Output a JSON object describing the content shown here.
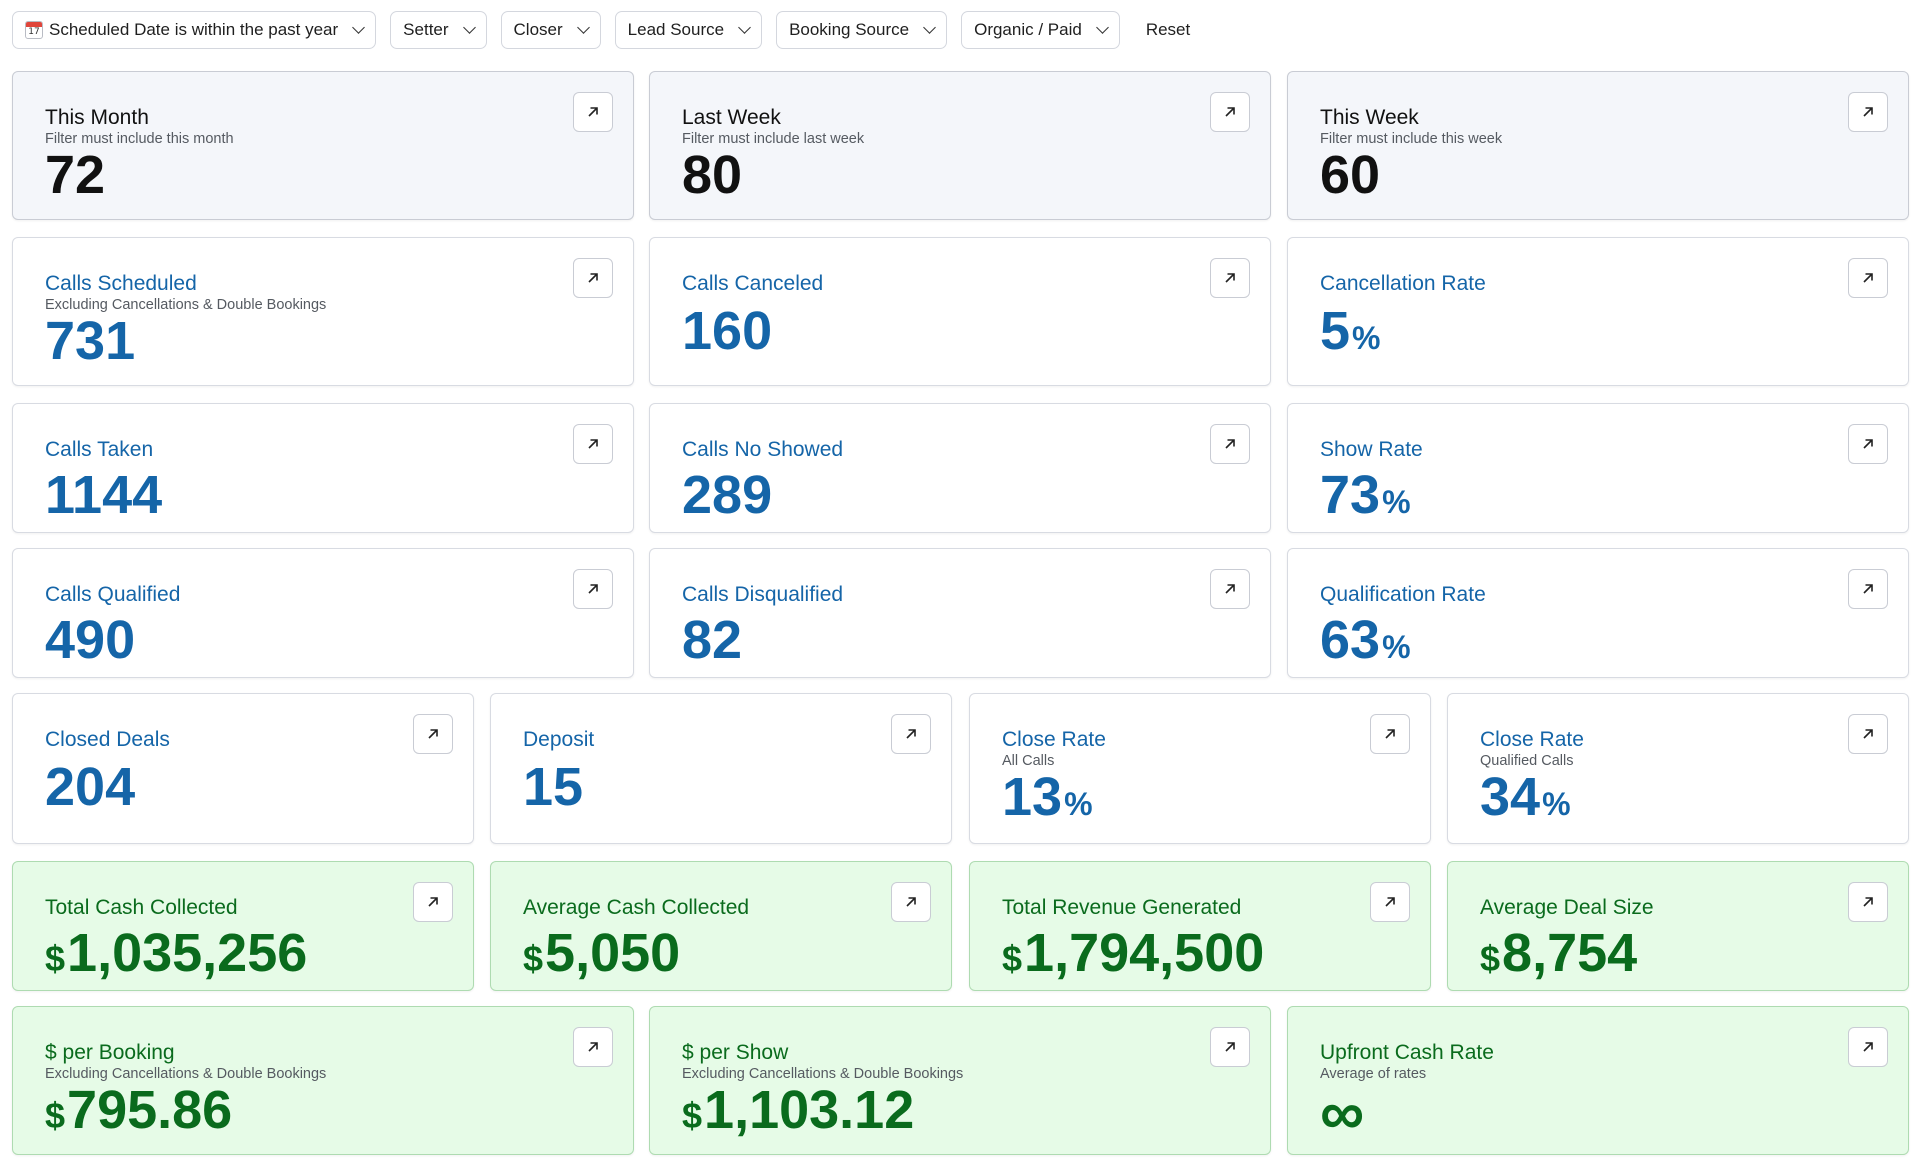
{
  "filters": {
    "date_range": "Scheduled Date is within the past year",
    "setter": "Setter",
    "closer": "Closer",
    "lead_source": "Lead Source",
    "booking_source": "Booking Source",
    "organic_paid": "Organic / Paid",
    "reset": "Reset"
  },
  "cards": {
    "this_month": {
      "title": "This Month",
      "subtitle": "Filter must include this month",
      "value": "72"
    },
    "last_week": {
      "title": "Last Week",
      "subtitle": "Filter must include last week",
      "value": "80"
    },
    "this_week": {
      "title": "This Week",
      "subtitle": "Filter must include this week",
      "value": "60"
    },
    "calls_scheduled": {
      "title": "Calls Scheduled",
      "subtitle": "Excluding Cancellations & Double Bookings",
      "value": "731"
    },
    "calls_canceled": {
      "title": "Calls Canceled",
      "value": "160"
    },
    "cancellation_rate": {
      "title": "Cancellation Rate",
      "value": "5",
      "unit": "%"
    },
    "calls_taken": {
      "title": "Calls Taken",
      "value": "1144"
    },
    "calls_no_showed": {
      "title": "Calls No Showed",
      "value": "289"
    },
    "show_rate": {
      "title": "Show Rate",
      "value": "73",
      "unit": "%"
    },
    "calls_qualified": {
      "title": "Calls Qualified",
      "value": "490"
    },
    "calls_disqualified": {
      "title": "Calls Disqualified",
      "value": "82"
    },
    "qualification_rate": {
      "title": "Qualification Rate",
      "value": "63",
      "unit": "%"
    },
    "closed_deals": {
      "title": "Closed Deals",
      "value": "204"
    },
    "deposit": {
      "title": "Deposit",
      "value": "15"
    },
    "close_rate_all": {
      "title": "Close Rate",
      "subtitle": "All Calls",
      "value": "13",
      "unit": "%"
    },
    "close_rate_qualified": {
      "title": "Close Rate",
      "subtitle": "Qualified Calls",
      "value": "34",
      "unit": "%"
    },
    "total_cash_collected": {
      "title": "Total Cash Collected",
      "currency": "$",
      "value": "1,035,256"
    },
    "average_cash_collected": {
      "title": "Average Cash Collected",
      "currency": "$",
      "value": "5,050"
    },
    "total_revenue_generated": {
      "title": "Total Revenue Generated",
      "currency": "$",
      "value": "1,794,500"
    },
    "average_deal_size": {
      "title": "Average Deal Size",
      "currency": "$",
      "value": "8,754"
    },
    "per_booking": {
      "title": "$ per Booking",
      "subtitle": "Excluding Cancellations & Double Bookings",
      "currency": "$",
      "value": "795.86"
    },
    "per_show": {
      "title": "$ per Show",
      "subtitle": "Excluding Cancellations & Double Bookings",
      "currency": "$",
      "value": "1,103.12"
    },
    "upfront_cash_rate": {
      "title": "Upfront Cash Rate",
      "subtitle": "Average of rates",
      "value": "∞"
    }
  },
  "icons": {
    "calendar": "calendar-icon",
    "dropdown": "chevron-down-icon",
    "open_card": "arrow-up-right-icon"
  },
  "colors": {
    "blue_metric": "#1565a8",
    "green_metric": "#0a6b1d",
    "green_card_bg": "#e6fbe7",
    "gray_card_bg": "#f4f6fa"
  }
}
